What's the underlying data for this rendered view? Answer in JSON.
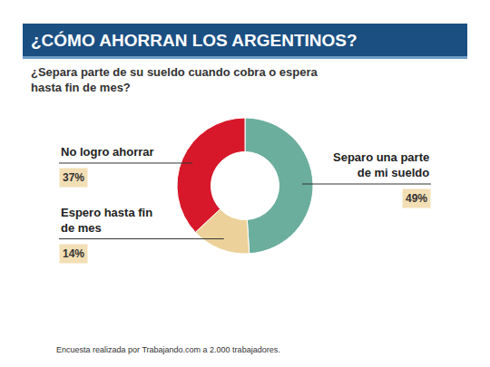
{
  "chart_data": {
    "type": "pie",
    "title": "¿CÓMO AHORRAN LOS ARGENTINOS?",
    "subtitle": "¿Separa parte de su sueldo cuando cobra o espera hasta fin de mes?",
    "categories": [
      "Separo una parte de mi sueldo",
      "Espero hasta fin de mes",
      "No logro ahorrar"
    ],
    "values": [
      49,
      14,
      37
    ],
    "value_labels": [
      "49%",
      "14%",
      "37%"
    ],
    "colors": [
      "#6bae9d",
      "#ecd29a",
      "#d7182a"
    ],
    "data_labels": true,
    "legend": "none",
    "note": "Encuesta realizada por Trabajando.com a 2.000 trabajadores."
  }
}
